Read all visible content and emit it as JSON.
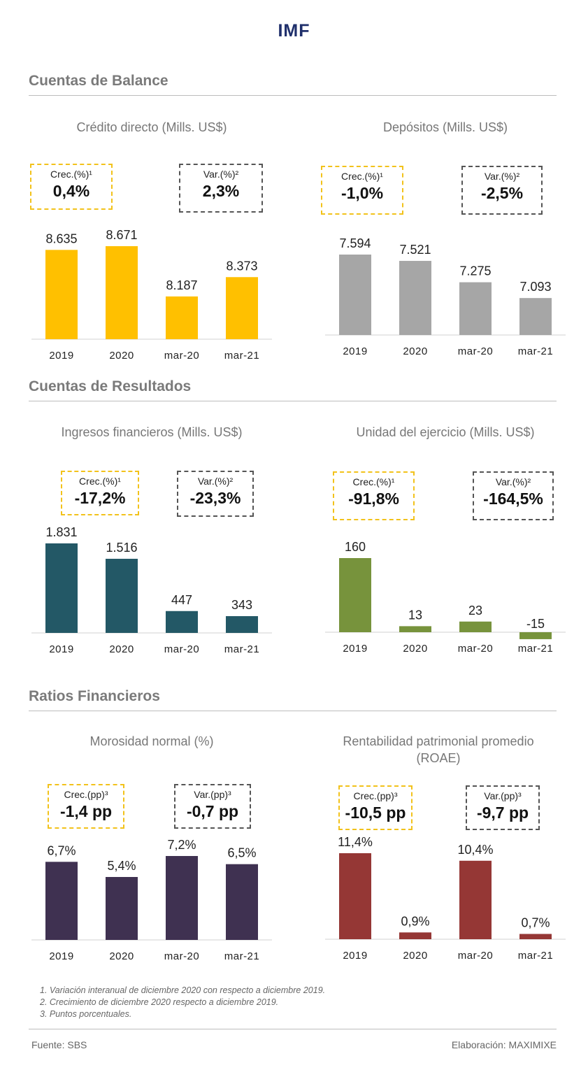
{
  "title": "IMF",
  "sections": [
    {
      "heading": "Cuentas de Balance"
    },
    {
      "heading": "Cuentas de Resultados"
    },
    {
      "heading": "Ratios Financieros"
    }
  ],
  "panels": [
    {
      "title": "Crédito directo (Mills. US$)",
      "badge1": {
        "label": "Crec.(%)¹",
        "value": "0,4%"
      },
      "badge2": {
        "label": "Var.(%)²",
        "value": "2,3%"
      }
    },
    {
      "title": "Depósitos (Mills. US$)",
      "badge1": {
        "label": "Crec.(%)¹",
        "value": "-1,0%"
      },
      "badge2": {
        "label": "Var.(%)²",
        "value": "-2,5%"
      }
    },
    {
      "title": "Ingresos financieros (Mills. US$)",
      "badge1": {
        "label": "Crec.(%)¹",
        "value": "-17,2%"
      },
      "badge2": {
        "label": "Var.(%)²",
        "value": "-23,3%"
      }
    },
    {
      "title": "Unidad del ejercicio (Mills. US$)",
      "badge1": {
        "label": "Crec.(%)¹",
        "value": "-91,8%"
      },
      "badge2": {
        "label": "Var.(%)²",
        "value": "-164,5%"
      }
    },
    {
      "title": "Morosidad normal (%)",
      "badge1": {
        "label": "Crec.(pp)³",
        "value": "-1,4 pp"
      },
      "badge2": {
        "label": "Var.(pp)³",
        "value": "-0,7 pp"
      }
    },
    {
      "title": "Rentabilidad patrimonial promedio (ROAE)",
      "badge1": {
        "label": "Crec.(pp)³",
        "value": "-10,5 pp"
      },
      "badge2": {
        "label": "Var.(pp)³",
        "value": "-9,7 pp"
      }
    }
  ],
  "chart_data": [
    {
      "type": "bar",
      "categories": [
        "2019",
        "2020",
        "mar-20",
        "mar-21"
      ],
      "values": [
        8635,
        8671,
        8187,
        8373
      ],
      "value_labels": [
        "8.635",
        "8.671",
        "8.187",
        "8.373"
      ],
      "color": "#ffc000"
    },
    {
      "type": "bar",
      "categories": [
        "2019",
        "2020",
        "mar-20",
        "mar-21"
      ],
      "values": [
        7594,
        7521,
        7275,
        7093
      ],
      "value_labels": [
        "7.594",
        "7.521",
        "7.275",
        "7.093"
      ],
      "color": "#a6a6a6"
    },
    {
      "type": "bar",
      "categories": [
        "2019",
        "2020",
        "mar-20",
        "mar-21"
      ],
      "values": [
        1831,
        1516,
        447,
        343
      ],
      "value_labels": [
        "1.831",
        "1.516",
        "447",
        "343"
      ],
      "color": "#235866"
    },
    {
      "type": "bar",
      "categories": [
        "2019",
        "2020",
        "mar-20",
        "mar-21"
      ],
      "values": [
        160,
        13,
        23,
        -15
      ],
      "value_labels": [
        "160",
        "13",
        "23",
        "-15"
      ],
      "color": "#77933c"
    },
    {
      "type": "bar",
      "categories": [
        "2019",
        "2020",
        "mar-20",
        "mar-21"
      ],
      "values": [
        6.7,
        5.4,
        7.2,
        6.5
      ],
      "value_labels": [
        "6,7%",
        "5,4%",
        "7,2%",
        "6,5%"
      ],
      "color": "#3f3151"
    },
    {
      "type": "bar",
      "categories": [
        "2019",
        "2020",
        "mar-20",
        "mar-21"
      ],
      "values": [
        11.4,
        0.9,
        10.4,
        0.7
      ],
      "value_labels": [
        "11,4%",
        "0,9%",
        "10,4%",
        "0,7%"
      ],
      "color": "#953735"
    }
  ],
  "notes": [
    "1. Variación interanual de diciembre 2020 con respecto a diciembre 2019.",
    "2. Crecimiento de diciembre 2020 respecto a diciembre 2019.",
    "3. Puntos porcentuales."
  ],
  "footer": {
    "source": "Fuente: SBS",
    "credit": "Elaboración: MAXIMIXE"
  }
}
